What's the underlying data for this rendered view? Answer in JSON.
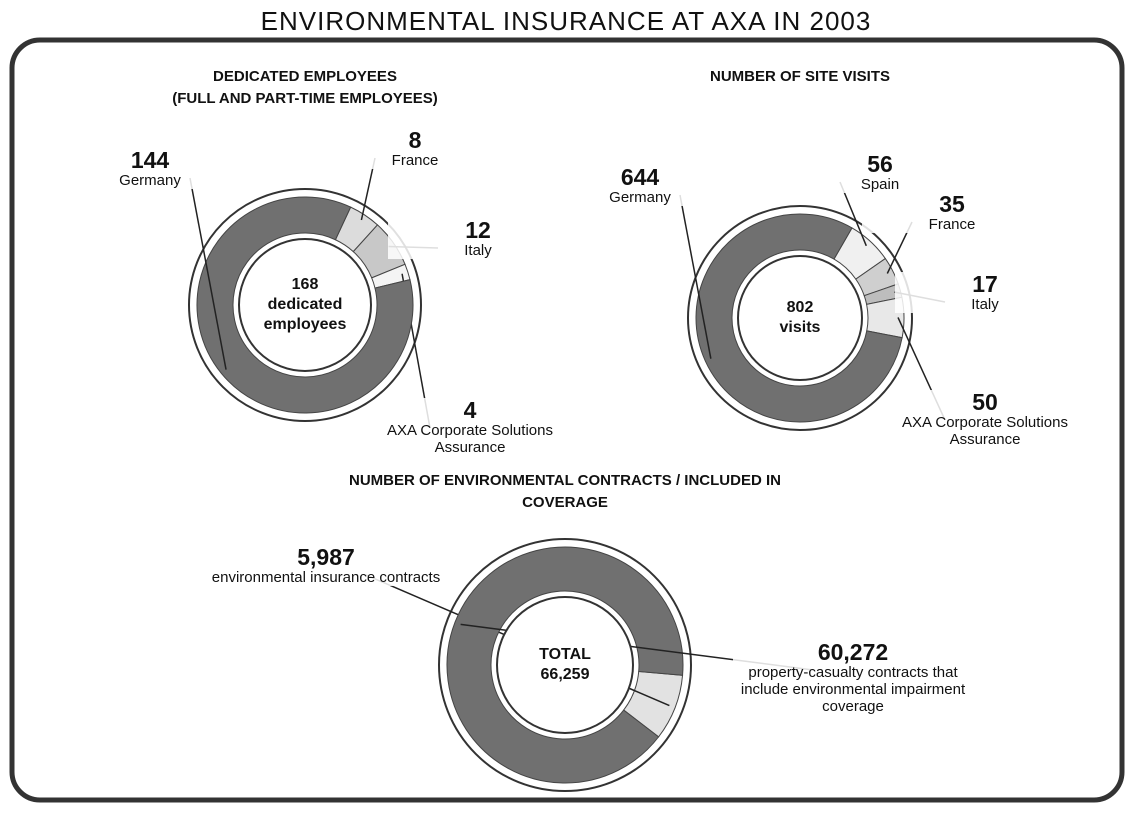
{
  "title": "ENVIRONMENTAL INSURANCE AT AXA IN 2003",
  "chart_data": [
    {
      "type": "donut",
      "title": "DEDICATED EMPLOYEES",
      "subtitle": "(FULL AND PART-TIME EMPLOYEES)",
      "total": 168,
      "center_label": "dedicated employees",
      "categories": [
        "France",
        "Italy",
        "AXA Corporate Solutions Assurance",
        "Germany"
      ],
      "values": [
        8,
        12,
        4,
        144
      ],
      "colors": [
        "#dcdcdc",
        "#c8c8c8",
        "#f4f4f4",
        "#707070"
      ]
    },
    {
      "type": "donut",
      "title": "NUMBER OF SITE VISITS",
      "total": 802,
      "center_label": "visits",
      "categories": [
        "Spain",
        "France",
        "Italy",
        "AXA Corporate Solutions Assurance",
        "Germany"
      ],
      "values": [
        56,
        35,
        17,
        50,
        644
      ],
      "colors": [
        "#f0f0f0",
        "#cfcfcf",
        "#bdbdbd",
        "#e8e8e8",
        "#707070"
      ]
    },
    {
      "type": "donut",
      "title": "NUMBER OF ENVIRONMENTAL CONTRACTS / INCLUDED IN COVERAGE",
      "total": {
        "value": 66259,
        "label": "66,259"
      },
      "center_label": "TOTAL",
      "categories": [
        "environmental insurance contracts",
        "property-casualty contracts that include environmental impairment coverage"
      ],
      "values": [
        5987,
        60272
      ],
      "value_labels": [
        "5,987",
        "60,272"
      ],
      "colors": [
        "#e2e2e2",
        "#707070"
      ]
    }
  ]
}
